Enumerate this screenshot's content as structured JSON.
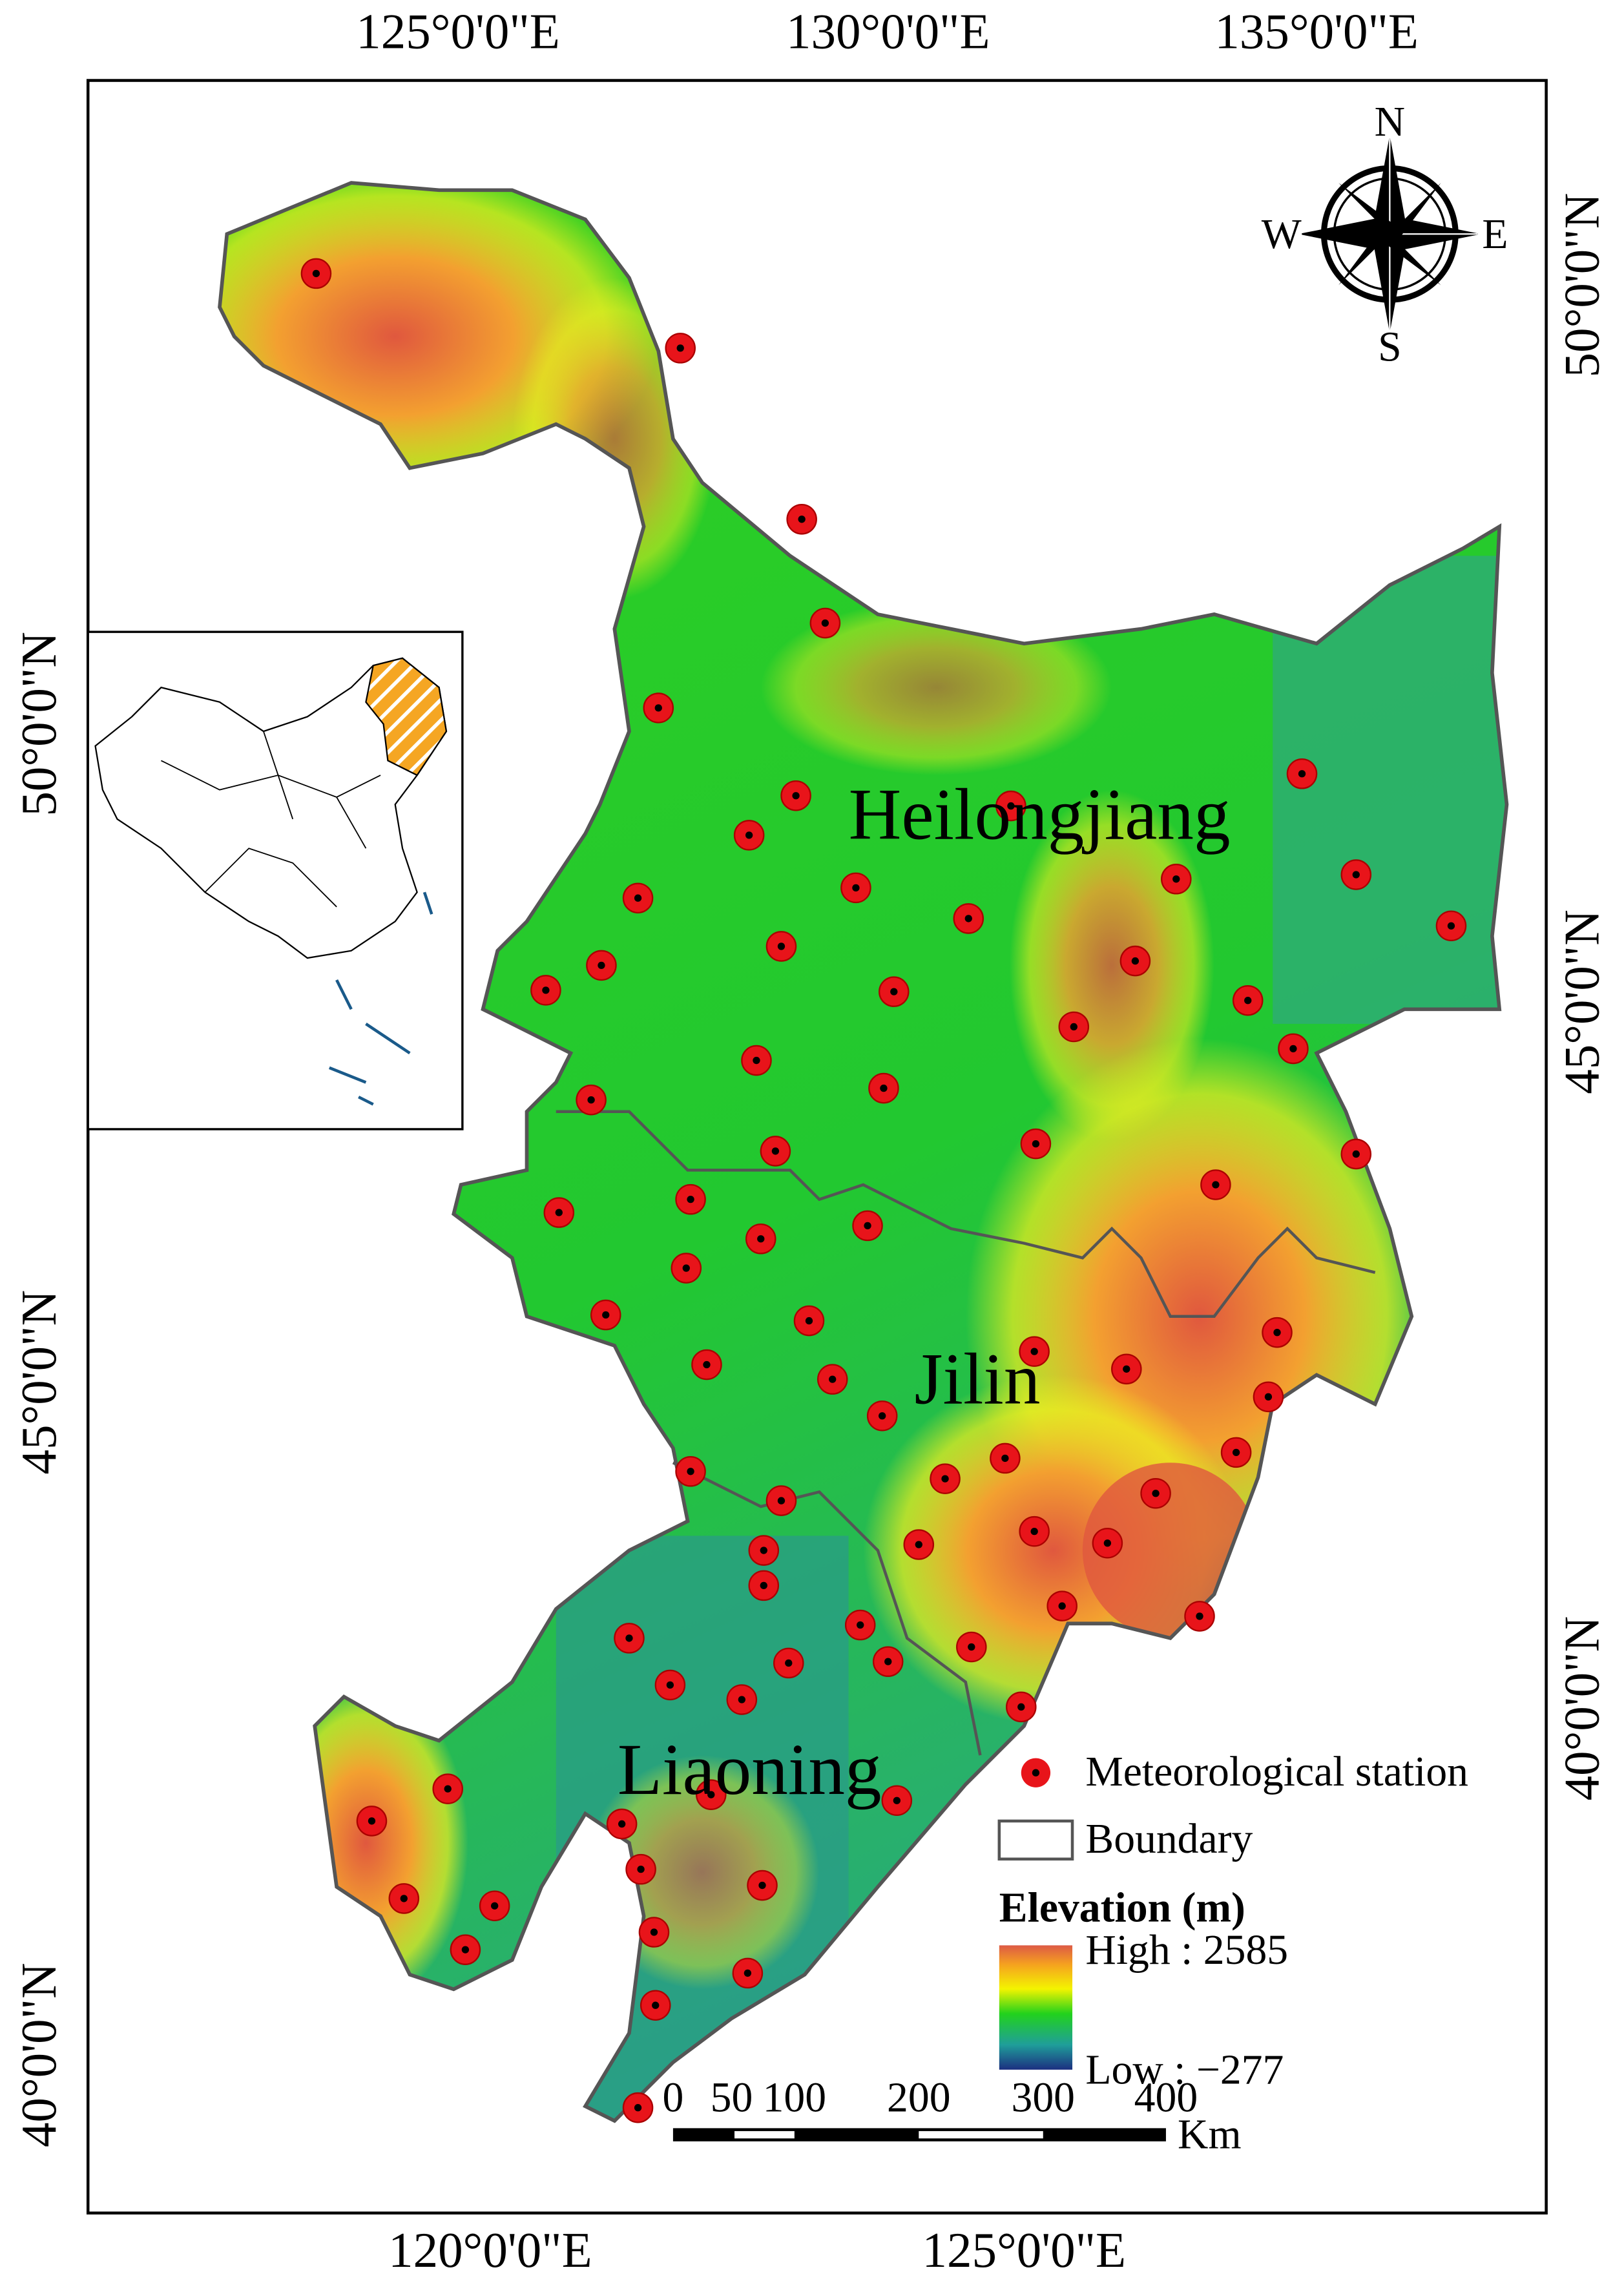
{
  "map": {
    "top_axis_labels": [
      "125°0'0\"E",
      "130°0'0\"E",
      "135°0'0\"E"
    ],
    "bottom_axis_labels": [
      "120°0'0\"E",
      "125°0'0\"E"
    ],
    "left_axis_labels": [
      "50°0'0\"N",
      "45°0'0\"N",
      "40°0'0\"N"
    ],
    "right_axis_labels": [
      "50°0'0\"N",
      "45°0'0\"N",
      "40°0'0\"N"
    ],
    "regions": [
      "Heilongjiang",
      "Jilin",
      "Liaoning"
    ],
    "compass": [
      "N",
      "E",
      "S",
      "W"
    ],
    "legend": {
      "station": "Meteorological station",
      "boundary": "Boundary",
      "elevation_title": "Elevation (m)",
      "high": "High : 2585",
      "low": "Low : −277"
    },
    "scale_bar": {
      "ticks": [
        "0",
        "50",
        "100",
        "200",
        "300",
        "400"
      ],
      "unit": "Km"
    }
  }
}
